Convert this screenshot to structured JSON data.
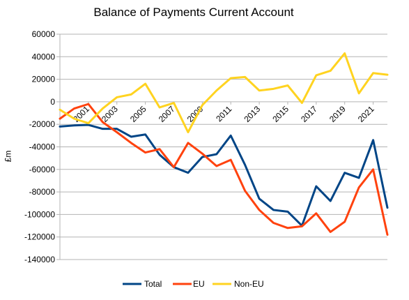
{
  "chart_data": {
    "type": "line",
    "title": "Balance of Payments Current Account",
    "xlabel": "",
    "ylabel": "£m",
    "x": [
      1999,
      2000,
      2001,
      2002,
      2003,
      2004,
      2005,
      2006,
      2007,
      2008,
      2009,
      2010,
      2011,
      2012,
      2013,
      2014,
      2015,
      2016,
      2017,
      2018,
      2019,
      2020,
      2021,
      2022
    ],
    "x_tick_labels": [
      "2001",
      "2003",
      "2005",
      "2007",
      "2009",
      "2011",
      "2013",
      "2015",
      "2017",
      "2019",
      "2021"
    ],
    "x_tick_values": [
      2001,
      2003,
      2005,
      2007,
      2009,
      2011,
      2013,
      2015,
      2017,
      2019,
      2021
    ],
    "ylim": [
      -140000,
      60000
    ],
    "y_ticks": [
      60000,
      40000,
      20000,
      0,
      -20000,
      -40000,
      -60000,
      -80000,
      -100000,
      -120000,
      -140000
    ],
    "y_tick_labels": [
      "60000",
      "40000",
      "20000",
      "0",
      "-20000",
      "-40000",
      "-60000",
      "-80000",
      "-100000",
      "-120000",
      "-140000"
    ],
    "grid": "horizontal",
    "legend_position": "bottom",
    "series": [
      {
        "name": "Total",
        "color": "#004586",
        "values": [
          -22000,
          -21000,
          -20500,
          -24000,
          -24000,
          -31000,
          -29000,
          -47000,
          -58000,
          -63000,
          -49000,
          -46500,
          -30000,
          -56000,
          -86000,
          -96000,
          -97500,
          -110000,
          -75000,
          -88000,
          -63000,
          -67500,
          -34000,
          -94000
        ]
      },
      {
        "name": "EU",
        "color": "#ff420e",
        "values": [
          -15000,
          -6000,
          -2000,
          -18000,
          -27000,
          -36500,
          -45000,
          -42000,
          -58000,
          -36500,
          -46000,
          -57000,
          -51500,
          -79000,
          -96000,
          -107500,
          -112000,
          -110500,
          -99000,
          -115500,
          -106500,
          -76000,
          -60000,
          -118000
        ]
      },
      {
        "name": "Non-EU",
        "color": "#ffd320",
        "values": [
          -7000,
          -15000,
          -19000,
          -6000,
          4000,
          6500,
          16000,
          -5000,
          -1000,
          -27000,
          -3000,
          10000,
          21000,
          22000,
          10000,
          11500,
          14500,
          -1000,
          23500,
          27500,
          43000,
          7500,
          25500,
          24000
        ]
      }
    ]
  }
}
